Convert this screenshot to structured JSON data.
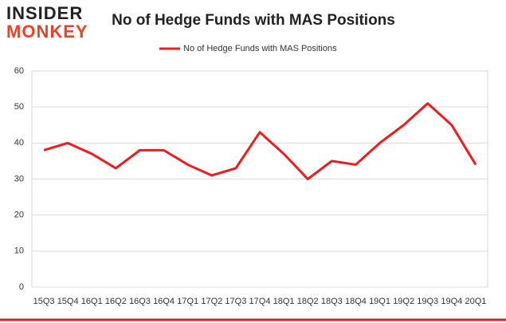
{
  "logo": {
    "top": "INSIDER",
    "bottom": "MONKEY"
  },
  "chart_data": {
    "type": "line",
    "title": "No of Hedge Funds with MAS Positions",
    "categories": [
      "15Q3",
      "15Q4",
      "16Q1",
      "16Q2",
      "16Q3",
      "16Q4",
      "17Q1",
      "17Q2",
      "17Q3",
      "17Q4",
      "18Q1",
      "18Q2",
      "18Q3",
      "18Q4",
      "19Q1",
      "19Q2",
      "19Q3",
      "19Q4",
      "20Q1"
    ],
    "series": [
      {
        "name": "No of Hedge Funds with MAS Positions",
        "color": "#ee1c1c",
        "values": [
          38,
          40,
          37,
          33,
          38,
          38,
          34,
          31,
          33,
          43,
          37,
          30,
          35,
          34,
          40,
          45,
          51,
          45,
          34
        ]
      }
    ],
    "ylim": [
      0,
      60
    ],
    "yticks": [
      0,
      10,
      20,
      30,
      40,
      50,
      60
    ],
    "grid": true,
    "legend": "top"
  }
}
